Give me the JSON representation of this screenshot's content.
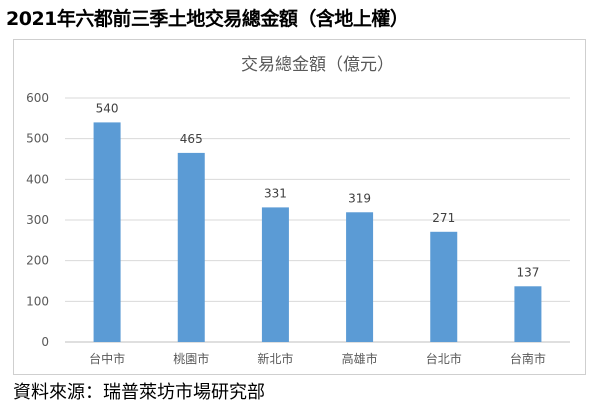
{
  "page_title": "2021年六都前三季土地交易總金額（含地上權）",
  "source_note": "資料來源：瑞普萊坊市場研究部",
  "chart_data": {
    "type": "bar",
    "title": "交易總金額（億元）",
    "xlabel": "",
    "ylabel": "",
    "categories": [
      "台中市",
      "桃園市",
      "新北市",
      "高雄市",
      "台北市",
      "台南市"
    ],
    "values": [
      540,
      465,
      331,
      319,
      271,
      137
    ],
    "data_labels": [
      "540",
      "465",
      "331",
      "319",
      "271",
      "137"
    ],
    "yticks": [
      "0",
      "100",
      "200",
      "300",
      "400",
      "500",
      "600"
    ],
    "ylim": [
      0,
      600
    ],
    "grid": true,
    "legend": "none",
    "bar_color": "#5b9bd5"
  }
}
